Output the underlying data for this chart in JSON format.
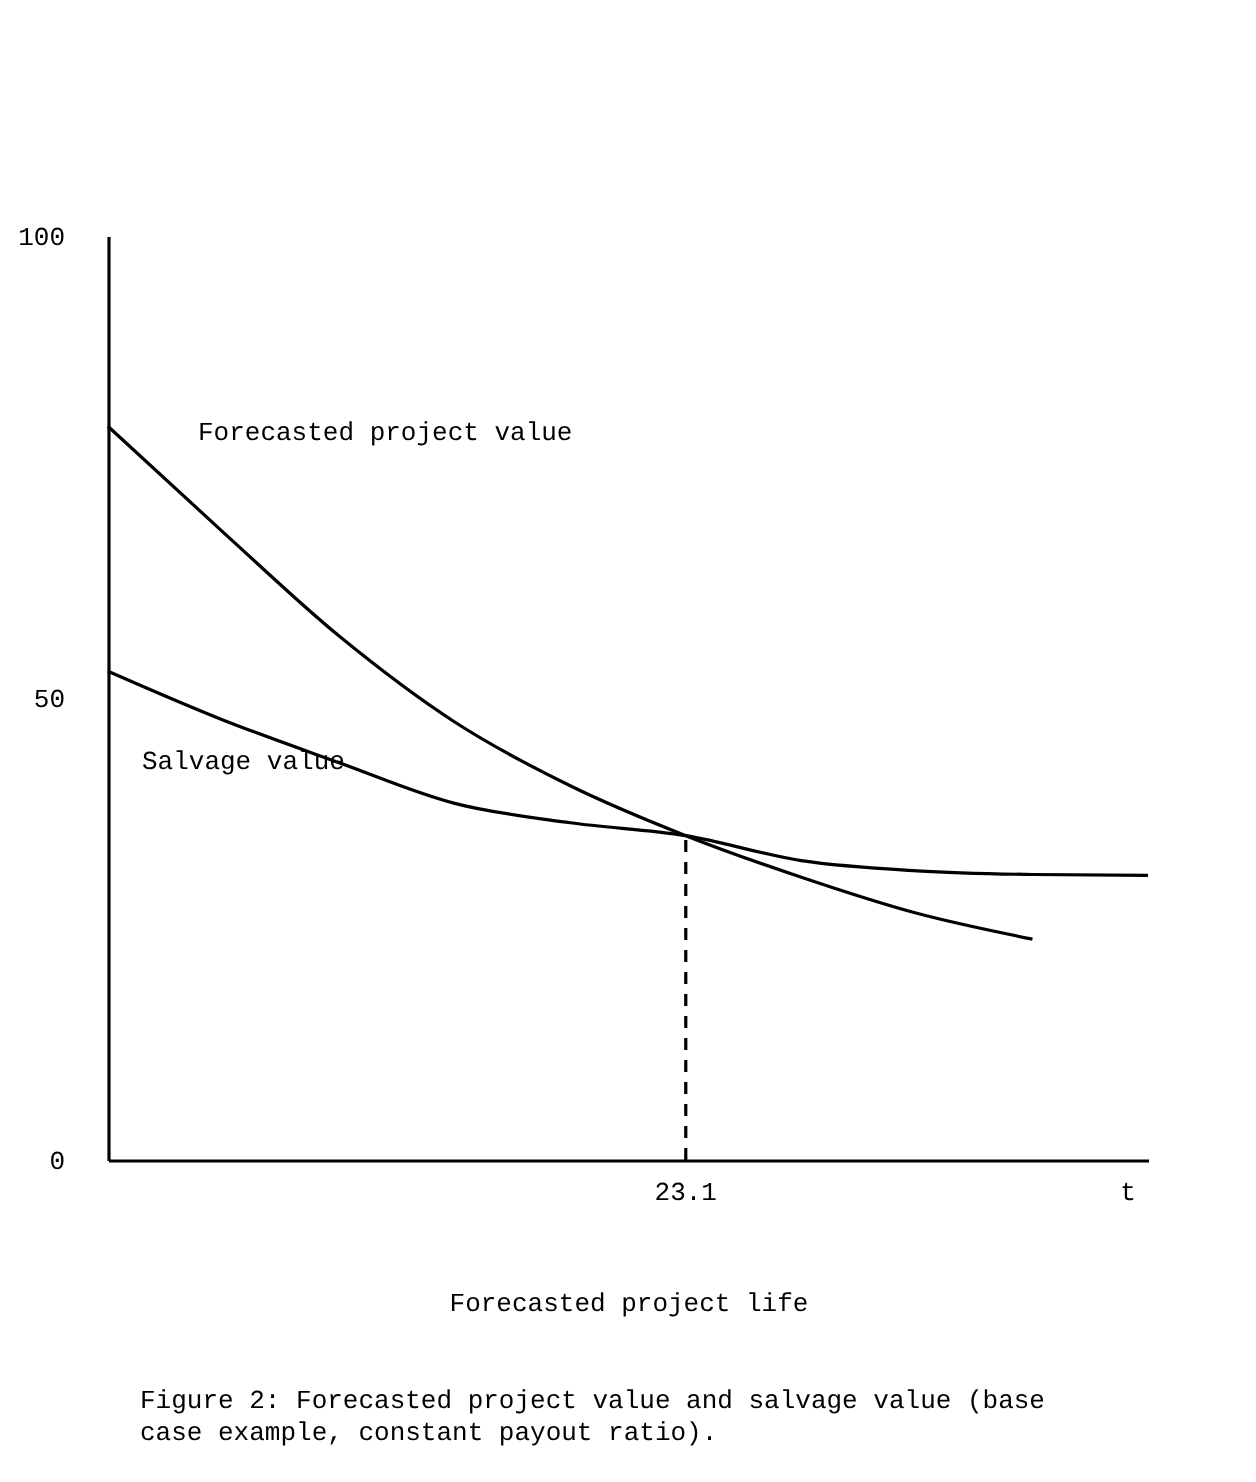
{
  "chart_data": {
    "type": "line",
    "title": "Figure 2:  Forecasted project value and salvage value (base case example, constant payout ratio).",
    "xlabel": "Forecasted project life",
    "annotations": [
      "23.1",
      "t"
    ],
    "categories": [
      null,
      null,
      null,
      null,
      null,
      null,
      null,
      null,
      null,
      null
    ],
    "series": [
      {
        "name": "Forecasted project value",
        "color": "#000000",
        "values": [
          79.4,
          67.9,
          56.7,
          47.4,
          40.5,
          35.1,
          30.6,
          26.7,
          23.9,
          null
        ]
      },
      {
        "name": "Salvage value",
        "color": "#000000",
        "values": [
          52.9,
          47.6,
          43.0,
          38.6,
          36.5,
          35.1,
          32.4,
          31.3,
          30.9,
          30.8
        ]
      }
    ],
    "ylim": [
      0,
      100
    ],
    "yticks": [
      0,
      50,
      100
    ],
    "legend": false,
    "line_style": "solid"
  }
}
